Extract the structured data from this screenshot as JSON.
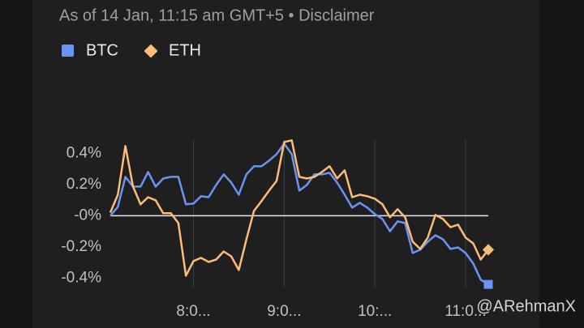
{
  "chart_data": {
    "type": "line",
    "subtitle": "As of 14 Jan, 11:15 am GMT+5 • Disclaimer",
    "x": [
      425,
      430,
      435,
      440,
      445,
      450,
      455,
      460,
      465,
      470,
      475,
      480,
      485,
      490,
      495,
      500,
      505,
      510,
      515,
      520,
      525,
      530,
      535,
      540,
      545,
      550,
      555,
      560,
      565,
      570,
      575,
      580,
      585,
      590,
      595,
      600,
      605,
      610,
      615,
      620,
      625,
      630,
      635,
      640,
      645,
      650,
      655,
      660,
      665,
      670,
      675
    ],
    "series": [
      {
        "name": "BTC",
        "color": "#6a94f2",
        "values": [
          0,
          0.057,
          0.249,
          0.187,
          0.187,
          0.281,
          0.187,
          0.239,
          0.249,
          0.249,
          0.073,
          0.078,
          0.125,
          0.119,
          0.197,
          0.265,
          0.213,
          0.135,
          0.265,
          0.317,
          0.317,
          0.353,
          0.395,
          0.462,
          0.395,
          0.161,
          0.197,
          0.265,
          0.265,
          0.275,
          0.213,
          0.135,
          0.052,
          0.083,
          0.052,
          0.01,
          -0.021,
          -0.099,
          -0.036,
          -0.047,
          -0.239,
          -0.218,
          -0.166,
          -0.125,
          -0.151,
          -0.213,
          -0.203,
          -0.239,
          -0.306,
          -0.41,
          -0.44
        ]
      },
      {
        "name": "ETH",
        "color": "#fbbd78",
        "values": [
          0.02,
          0.135,
          0.447,
          0.187,
          0.073,
          0.119,
          0.099,
          0.016,
          0.016,
          -0.047,
          -0.384,
          -0.291,
          -0.27,
          -0.296,
          -0.281,
          -0.229,
          -0.26,
          -0.348,
          -0.151,
          0.031,
          0.094,
          0.161,
          0.223,
          0.473,
          0.483,
          0.249,
          0.239,
          0.249,
          0.281,
          0.317,
          0.239,
          0.291,
          0.119,
          0.135,
          0.125,
          0.109,
          0.073,
          -0.01,
          0.042,
          -0.01,
          -0.166,
          -0.213,
          -0.14,
          0.005,
          -0.021,
          -0.073,
          -0.057,
          -0.14,
          -0.177,
          -0.281,
          -0.218
        ]
      }
    ],
    "xlim": [
      425,
      675
    ],
    "xticks": [
      {
        "value": 480,
        "label": "8:0..."
      },
      {
        "value": 540,
        "label": "9:0..."
      },
      {
        "value": 600,
        "label": "10:..."
      },
      {
        "value": 660,
        "label": "11:0..."
      }
    ],
    "ylim": [
      -0.46,
      0.49
    ],
    "yticks": [
      {
        "value": 0.4,
        "label": "0.4%"
      },
      {
        "value": 0.2,
        "label": "0.2%"
      },
      {
        "value": 0,
        "label": "-0%"
      },
      {
        "value": -0.2,
        "label": "-0.2%"
      },
      {
        "value": -0.4,
        "label": "-0.4%"
      }
    ],
    "grid": "x"
  },
  "watermark": "@ARehmanX"
}
